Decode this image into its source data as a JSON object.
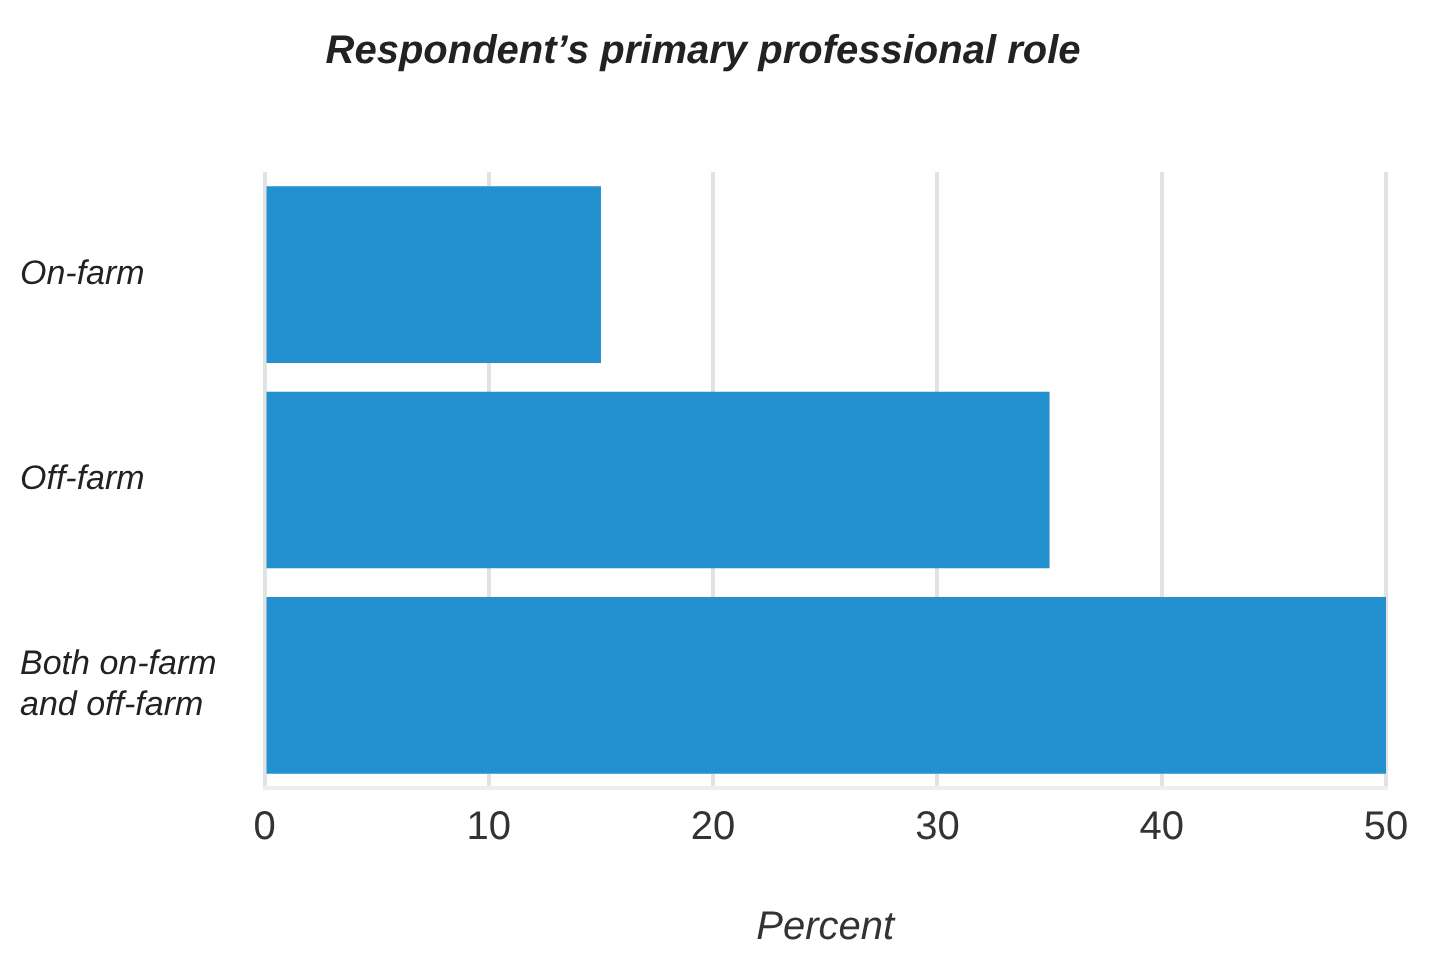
{
  "chart_data": {
    "type": "bar",
    "orientation": "horizontal",
    "title": "Respondent’s primary professional role",
    "xlabel": "Percent",
    "categories": [
      "On-farm",
      "Off-farm",
      "Both on-farm and off-farm"
    ],
    "values": [
      15,
      35,
      50
    ],
    "color": "#2390d0",
    "xlim": [
      0,
      50
    ],
    "xticks": [
      0,
      10,
      20,
      30,
      40,
      50
    ],
    "grid": "x",
    "legend": false
  }
}
